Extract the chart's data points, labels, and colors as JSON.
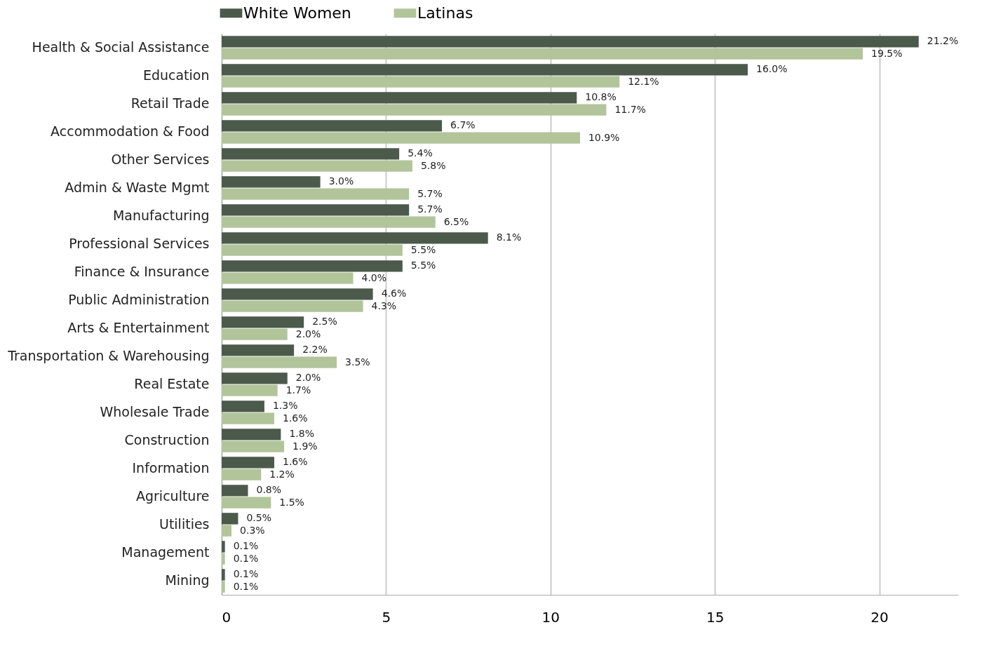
{
  "chart_data": {
    "type": "bar",
    "orientation": "horizontal",
    "legend": "top",
    "grid": "x",
    "categories": [
      "Health & Social Assistance",
      "Education",
      "Retail Trade",
      "Accommodation & Food",
      "Other Services",
      "Admin & Waste Mgmt",
      "Manufacturing",
      "Professional Services",
      "Finance & Insurance",
      "Public Administration",
      "Arts & Entertainment",
      "Transportation & Warehousing",
      "Real Estate",
      "Wholesale Trade",
      "Construction",
      "Information",
      "Agriculture",
      "Utilities",
      "Management",
      "Mining"
    ],
    "series": [
      {
        "name": "White Women",
        "color": "#4b5a4b",
        "values": [
          21.2,
          16.0,
          10.8,
          6.7,
          5.4,
          3.0,
          5.7,
          8.1,
          5.5,
          4.6,
          2.5,
          2.2,
          2.0,
          1.3,
          1.8,
          1.6,
          0.8,
          0.5,
          0.1,
          0.1
        ],
        "value_labels": [
          "21.2%",
          "16.0%",
          "10.8%",
          "6.7%",
          "5.4%",
          "3.0%",
          "5.7%",
          "8.1%",
          "5.5%",
          "4.6%",
          "2.5%",
          "2.2%",
          "2.0%",
          "1.3%",
          "1.8%",
          "1.6%",
          "0.8%",
          "0.5%",
          "0.1%",
          "0.1%"
        ]
      },
      {
        "name": "Latinas",
        "color": "#b2c49a",
        "values": [
          19.5,
          12.1,
          11.7,
          10.9,
          5.8,
          5.7,
          6.5,
          5.5,
          4.0,
          4.3,
          2.0,
          3.5,
          1.7,
          1.6,
          1.9,
          1.2,
          1.5,
          0.3,
          0.1,
          0.1
        ],
        "value_labels": [
          "19.5%",
          "12.1%",
          "11.7%",
          "10.9%",
          "5.8%",
          "5.7%",
          "6.5%",
          "5.5%",
          "4.0%",
          "4.3%",
          "2.0%",
          "3.5%",
          "1.7%",
          "1.6%",
          "1.9%",
          "1.2%",
          "1.5%",
          "0.3%",
          "0.1%",
          "0.1%"
        ]
      }
    ],
    "xlim": [
      0,
      22.4
    ],
    "xticks": [
      0,
      5,
      10,
      15,
      20
    ]
  }
}
